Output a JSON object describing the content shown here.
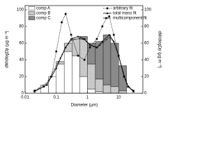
{
  "chart_data": {
    "type": "histogram",
    "x_label": "Diameter (µm)",
    "y_label": "dM/dlogDp (µg m⁻³)",
    "y2_label": "dM/dlogDp (µg m⁻³)",
    "log_x": true,
    "xlim": [
      0.01,
      60
    ],
    "xticks": [
      0.01,
      0.1,
      1,
      10
    ],
    "ylim": [
      0,
      105
    ],
    "yticks": [
      0,
      20,
      40,
      60,
      80,
      100
    ],
    "y2lim": [
      0,
      105
    ],
    "y2ticks": [
      0,
      20,
      40,
      60,
      80,
      100
    ],
    "bins": [
      0.032,
      0.056,
      0.1,
      0.18,
      0.32,
      0.56,
      1,
      1.8,
      3.2,
      5.6,
      10,
      18
    ],
    "series": [
      {
        "name": "comp A",
        "color": "#ffffff",
        "values": [
          10,
          20,
          35,
          50,
          45,
          20,
          5,
          2,
          0,
          0,
          0
        ]
      },
      {
        "name": "comp B",
        "color": "#d4d4d4",
        "values": [
          0,
          0,
          3,
          10,
          20,
          45,
          30,
          15,
          10,
          8,
          3
        ]
      },
      {
        "name": "comp C",
        "color": "#8a8a8a",
        "values": [
          0,
          0,
          0,
          0,
          0,
          3,
          25,
          45,
          60,
          52,
          30
        ]
      }
    ],
    "fits": [
      {
        "name": "arbitrary fit",
        "color": "#000000",
        "style": "dotted",
        "marker": "square",
        "x": [
          0.02,
          0.04,
          0.07,
          0.1,
          0.15,
          0.2,
          0.3,
          0.5,
          0.8,
          1.2,
          2,
          3,
          4,
          5,
          7,
          10,
          15,
          20,
          30
        ],
        "values": [
          3,
          8,
          20,
          50,
          85,
          95,
          70,
          45,
          40,
          55,
          65,
          80,
          90,
          92,
          70,
          45,
          20,
          8,
          3
        ]
      },
      {
        "name": "total mass fit",
        "color": "#000000",
        "style": "solid",
        "marker": "triangle",
        "x": [
          0.02,
          0.05,
          0.1,
          0.2,
          0.3,
          0.5,
          0.8,
          1.2,
          2,
          3,
          5,
          7,
          10,
          15,
          20,
          30
        ],
        "values": [
          2,
          10,
          30,
          55,
          65,
          68,
          65,
          58,
          55,
          62,
          70,
          62,
          45,
          20,
          8,
          2
        ]
      },
      {
        "name": "multicomponent fit",
        "color": "#000000",
        "style": "dashdot",
        "marker": "none",
        "x": [
          0.02,
          0.05,
          0.1,
          0.2,
          0.3,
          0.5,
          0.8,
          1.2,
          2,
          3,
          5,
          7,
          10,
          15,
          20,
          30
        ],
        "values": [
          3,
          12,
          33,
          55,
          63,
          66,
          64,
          58,
          54,
          60,
          67,
          62,
          45,
          22,
          9,
          3
        ]
      }
    ]
  }
}
